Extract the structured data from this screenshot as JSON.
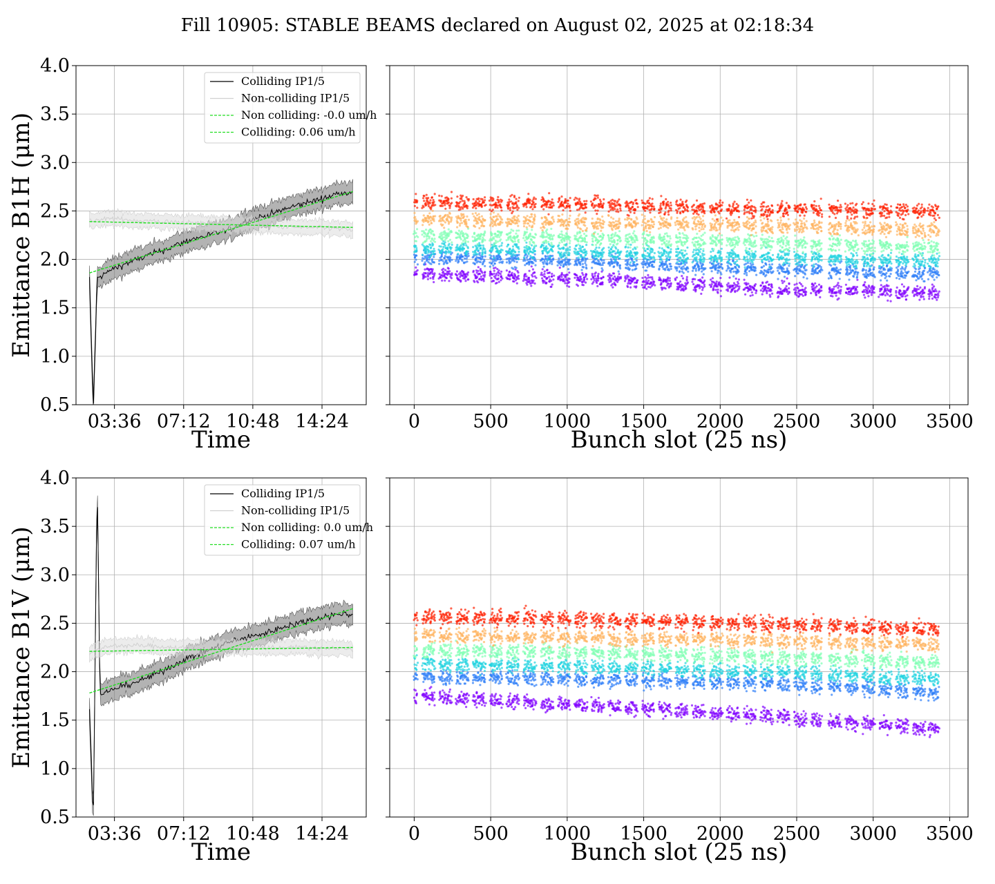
{
  "suptitle": "Fill 10905: STABLE BEAMS declared on August 02, 2025 at 02:18:34",
  "chart_data": [
    {
      "type": "line",
      "panel": "B1H-time",
      "xlabel": "Time",
      "ylabel": "Emittance B1H (μm)",
      "ylim": [
        0.5,
        4.0
      ],
      "yticks": [
        "0.5",
        "1.0",
        "1.5",
        "2.0",
        "2.5",
        "3.0",
        "3.5",
        "4.0"
      ],
      "xlim": [
        1.6,
        16.7
      ],
      "xticks": [
        {
          "v": 3.6,
          "label": "03:36"
        },
        {
          "v": 7.2,
          "label": "07:12"
        },
        {
          "v": 10.8,
          "label": "10:48"
        },
        {
          "v": 14.4,
          "label": "14:24"
        }
      ],
      "grid": true,
      "legend_position": "top-right",
      "series": [
        {
          "name": "Colliding IP1/5",
          "color": "#000000",
          "band": true,
          "points": [
            [
              2.3,
              1.8
            ],
            [
              2.5,
              0.45
            ],
            [
              2.7,
              1.8
            ],
            [
              3.5,
              1.9
            ],
            [
              4.5,
              1.98
            ],
            [
              5.5,
              2.05
            ],
            [
              6.5,
              2.12
            ],
            [
              7.5,
              2.2
            ],
            [
              8.5,
              2.25
            ],
            [
              9.5,
              2.3
            ],
            [
              10.5,
              2.4
            ],
            [
              11.5,
              2.45
            ],
            [
              12.5,
              2.52
            ],
            [
              13.5,
              2.58
            ],
            [
              14.5,
              2.63
            ],
            [
              15.5,
              2.7
            ],
            [
              16.0,
              2.68
            ]
          ]
        },
        {
          "name": "Non-colliding IP1/5",
          "color": "#c8c8c8",
          "band": true,
          "points": [
            [
              2.3,
              2.4
            ],
            [
              3.5,
              2.42
            ],
            [
              5.0,
              2.4
            ],
            [
              7.0,
              2.38
            ],
            [
              9.0,
              2.37
            ],
            [
              11.0,
              2.35
            ],
            [
              13.0,
              2.33
            ],
            [
              15.0,
              2.32
            ],
            [
              16.0,
              2.3
            ]
          ]
        },
        {
          "name": "Non colliding: -0.0 um/h",
          "color": "#22dd22",
          "dashed": true,
          "points": [
            [
              2.3,
              2.39
            ],
            [
              16.0,
              2.33
            ]
          ]
        },
        {
          "name": "Colliding: 0.06 um/h",
          "color": "#22dd22",
          "dashed": true,
          "points": [
            [
              2.3,
              1.86
            ],
            [
              16.0,
              2.7
            ]
          ]
        }
      ]
    },
    {
      "type": "scatter",
      "panel": "B1H-bunch",
      "xlabel": "Bunch slot (25 ns)",
      "ylim": [
        0.5,
        4.0
      ],
      "xlim": [
        -160,
        3620
      ],
      "xticks": [
        "0",
        "500",
        "1000",
        "1500",
        "2000",
        "2500",
        "3000",
        "3500"
      ],
      "grid": true,
      "colormap": "rainbow",
      "bunch_trains": [
        [
          0,
          20
        ],
        [
          55,
          135
        ],
        [
          165,
          245
        ],
        [
          275,
          355
        ],
        [
          385,
          465
        ],
        [
          495,
          575
        ],
        [
          605,
          685
        ],
        [
          715,
          795
        ],
        [
          830,
          910
        ],
        [
          940,
          1020
        ],
        [
          1050,
          1130
        ],
        [
          1160,
          1240
        ],
        [
          1270,
          1350
        ],
        [
          1380,
          1460
        ],
        [
          1490,
          1570
        ],
        [
          1600,
          1680
        ],
        [
          1710,
          1790
        ],
        [
          1820,
          1900
        ],
        [
          1935,
          2015
        ],
        [
          2045,
          2125
        ],
        [
          2155,
          2235
        ],
        [
          2265,
          2345
        ],
        [
          2375,
          2455
        ],
        [
          2485,
          2565
        ],
        [
          2595,
          2665
        ],
        [
          2710,
          2790
        ],
        [
          2820,
          2900
        ],
        [
          2930,
          3010
        ],
        [
          3040,
          3120
        ],
        [
          3150,
          3230
        ],
        [
          3260,
          3340
        ],
        [
          3360,
          3430
        ]
      ],
      "bands": [
        {
          "color": "#8000ff",
          "values": [
            1.85,
            1.8,
            1.7,
            1.65
          ]
        },
        {
          "color": "#2c7ef8",
          "values": [
            2.02,
            1.98,
            1.9,
            1.85
          ]
        },
        {
          "color": "#20d3e0",
          "values": [
            2.12,
            2.08,
            2.02,
            1.98
          ]
        },
        {
          "color": "#80ffb4",
          "values": [
            2.25,
            2.22,
            2.17,
            2.12
          ]
        },
        {
          "color": "#ffb360",
          "values": [
            2.42,
            2.38,
            2.35,
            2.3
          ]
        },
        {
          "color": "#ff2000",
          "values": [
            2.58,
            2.55,
            2.5,
            2.48
          ]
        }
      ]
    },
    {
      "type": "line",
      "panel": "B1V-time",
      "xlabel": "Time",
      "ylabel": "Emittance B1V (μm)",
      "ylim": [
        0.5,
        4.0
      ],
      "yticks": [
        "0.5",
        "1.0",
        "1.5",
        "2.0",
        "2.5",
        "3.0",
        "3.5",
        "4.0"
      ],
      "xlim": [
        1.6,
        16.7
      ],
      "xticks": [
        {
          "v": 3.6,
          "label": "03:36"
        },
        {
          "v": 7.2,
          "label": "07:12"
        },
        {
          "v": 10.8,
          "label": "10:48"
        },
        {
          "v": 14.4,
          "label": "14:24"
        }
      ],
      "grid": true,
      "legend_position": "top-right",
      "series": [
        {
          "name": "Colliding IP1/5",
          "color": "#000000",
          "band": true,
          "points": [
            [
              2.3,
              1.6
            ],
            [
              2.5,
              0.45
            ],
            [
              2.7,
              4.0
            ],
            [
              2.85,
              1.75
            ],
            [
              3.5,
              1.82
            ],
            [
              4.5,
              1.88
            ],
            [
              5.5,
              1.95
            ],
            [
              6.5,
              2.05
            ],
            [
              7.5,
              2.15
            ],
            [
              8.5,
              2.22
            ],
            [
              9.5,
              2.3
            ],
            [
              10.5,
              2.35
            ],
            [
              11.5,
              2.4
            ],
            [
              12.5,
              2.47
            ],
            [
              13.5,
              2.52
            ],
            [
              14.5,
              2.57
            ],
            [
              15.5,
              2.6
            ],
            [
              16.0,
              2.58
            ]
          ]
        },
        {
          "name": "Non-colliding IP1/5",
          "color": "#c8c8c8",
          "band": true,
          "points": [
            [
              2.3,
              2.2
            ],
            [
              3.5,
              2.27
            ],
            [
              5.0,
              2.27
            ],
            [
              7.0,
              2.25
            ],
            [
              9.0,
              2.25
            ],
            [
              11.0,
              2.25
            ],
            [
              13.0,
              2.25
            ],
            [
              15.0,
              2.24
            ],
            [
              16.0,
              2.23
            ]
          ]
        },
        {
          "name": "Non colliding: 0.0 um/h",
          "color": "#22dd22",
          "dashed": true,
          "points": [
            [
              2.3,
              2.21
            ],
            [
              16.0,
              2.25
            ]
          ]
        },
        {
          "name": "Colliding: 0.07 um/h",
          "color": "#22dd22",
          "dashed": true,
          "points": [
            [
              2.3,
              1.78
            ],
            [
              16.0,
              2.65
            ]
          ]
        }
      ]
    },
    {
      "type": "scatter",
      "panel": "B1V-bunch",
      "xlabel": "Bunch slot (25 ns)",
      "ylim": [
        0.5,
        4.0
      ],
      "xlim": [
        -160,
        3620
      ],
      "xticks": [
        "0",
        "500",
        "1000",
        "1500",
        "2000",
        "2500",
        "3000",
        "3500"
      ],
      "grid": true,
      "colormap": "rainbow",
      "bunch_trains": [
        [
          0,
          20
        ],
        [
          55,
          135
        ],
        [
          165,
          245
        ],
        [
          275,
          355
        ],
        [
          385,
          465
        ],
        [
          495,
          575
        ],
        [
          605,
          685
        ],
        [
          715,
          795
        ],
        [
          830,
          910
        ],
        [
          940,
          1020
        ],
        [
          1050,
          1130
        ],
        [
          1160,
          1240
        ],
        [
          1270,
          1350
        ],
        [
          1380,
          1460
        ],
        [
          1490,
          1570
        ],
        [
          1600,
          1680
        ],
        [
          1710,
          1790
        ],
        [
          1820,
          1900
        ],
        [
          1935,
          2015
        ],
        [
          2045,
          2125
        ],
        [
          2155,
          2235
        ],
        [
          2265,
          2345
        ],
        [
          2375,
          2455
        ],
        [
          2485,
          2565
        ],
        [
          2595,
          2665
        ],
        [
          2710,
          2790
        ],
        [
          2820,
          2900
        ],
        [
          2930,
          3010
        ],
        [
          3040,
          3120
        ],
        [
          3150,
          3230
        ],
        [
          3260,
          3340
        ],
        [
          3360,
          3430
        ]
      ],
      "bands": [
        {
          "color": "#8000ff",
          "values": [
            1.75,
            1.65,
            1.55,
            1.4
          ]
        },
        {
          "color": "#2c7ef8",
          "values": [
            1.95,
            1.92,
            1.88,
            1.78
          ]
        },
        {
          "color": "#20d3e0",
          "values": [
            2.08,
            2.05,
            2.0,
            1.92
          ]
        },
        {
          "color": "#80ffb4",
          "values": [
            2.22,
            2.2,
            2.15,
            2.1
          ]
        },
        {
          "color": "#ffb360",
          "values": [
            2.38,
            2.35,
            2.32,
            2.28
          ]
        },
        {
          "color": "#ff2000",
          "values": [
            2.55,
            2.52,
            2.48,
            2.42
          ]
        }
      ]
    }
  ]
}
